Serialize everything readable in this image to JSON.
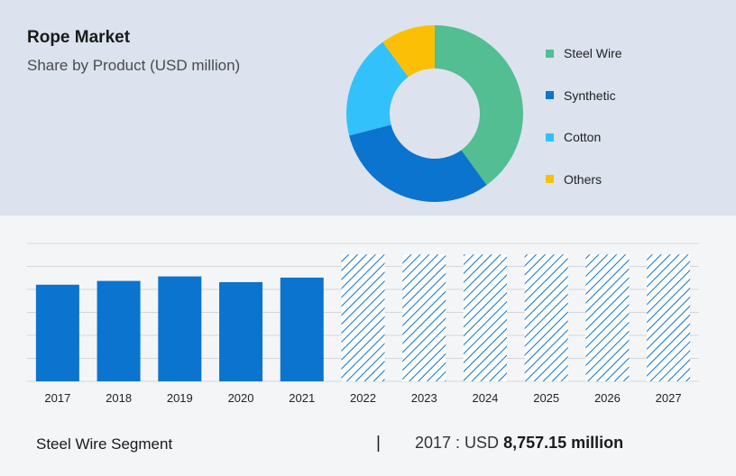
{
  "title": "Rope Market",
  "subtitle": "Share by Product (USD million)",
  "colors": {
    "steel_wire": "#52be91",
    "synthetic": "#0a74cf",
    "cotton": "#32c1fb",
    "others": "#fbc005",
    "bar": "#0a74cf",
    "forecast_hatch": "#0a74cf"
  },
  "chart_data": [
    {
      "type": "pie",
      "variant": "donut",
      "slices": [
        {
          "label": "Steel Wire",
          "value": 40,
          "color": "#52be91"
        },
        {
          "label": "Synthetic",
          "value": 31,
          "color": "#0a74cf"
        },
        {
          "label": "Cotton",
          "value": 19,
          "color": "#32c1fb"
        },
        {
          "label": "Others",
          "value": 10,
          "color": "#fbc005"
        }
      ],
      "legend_position": "right"
    },
    {
      "type": "bar",
      "categories": [
        "2017",
        "2018",
        "2019",
        "2020",
        "2021",
        "2022",
        "2023",
        "2024",
        "2025",
        "2026",
        "2027"
      ],
      "values": [
        8757.15,
        9100,
        9510,
        8990,
        9400,
        11500,
        11500,
        11500,
        11500,
        11500,
        11500
      ],
      "forecast_from": "2022",
      "ylim": [
        0,
        12500
      ],
      "grid": true
    }
  ],
  "footer": {
    "segment_label": "Steel Wire Segment",
    "separator": "|",
    "year_prefix": "2017 : USD",
    "value": "8,757.15 million"
  }
}
